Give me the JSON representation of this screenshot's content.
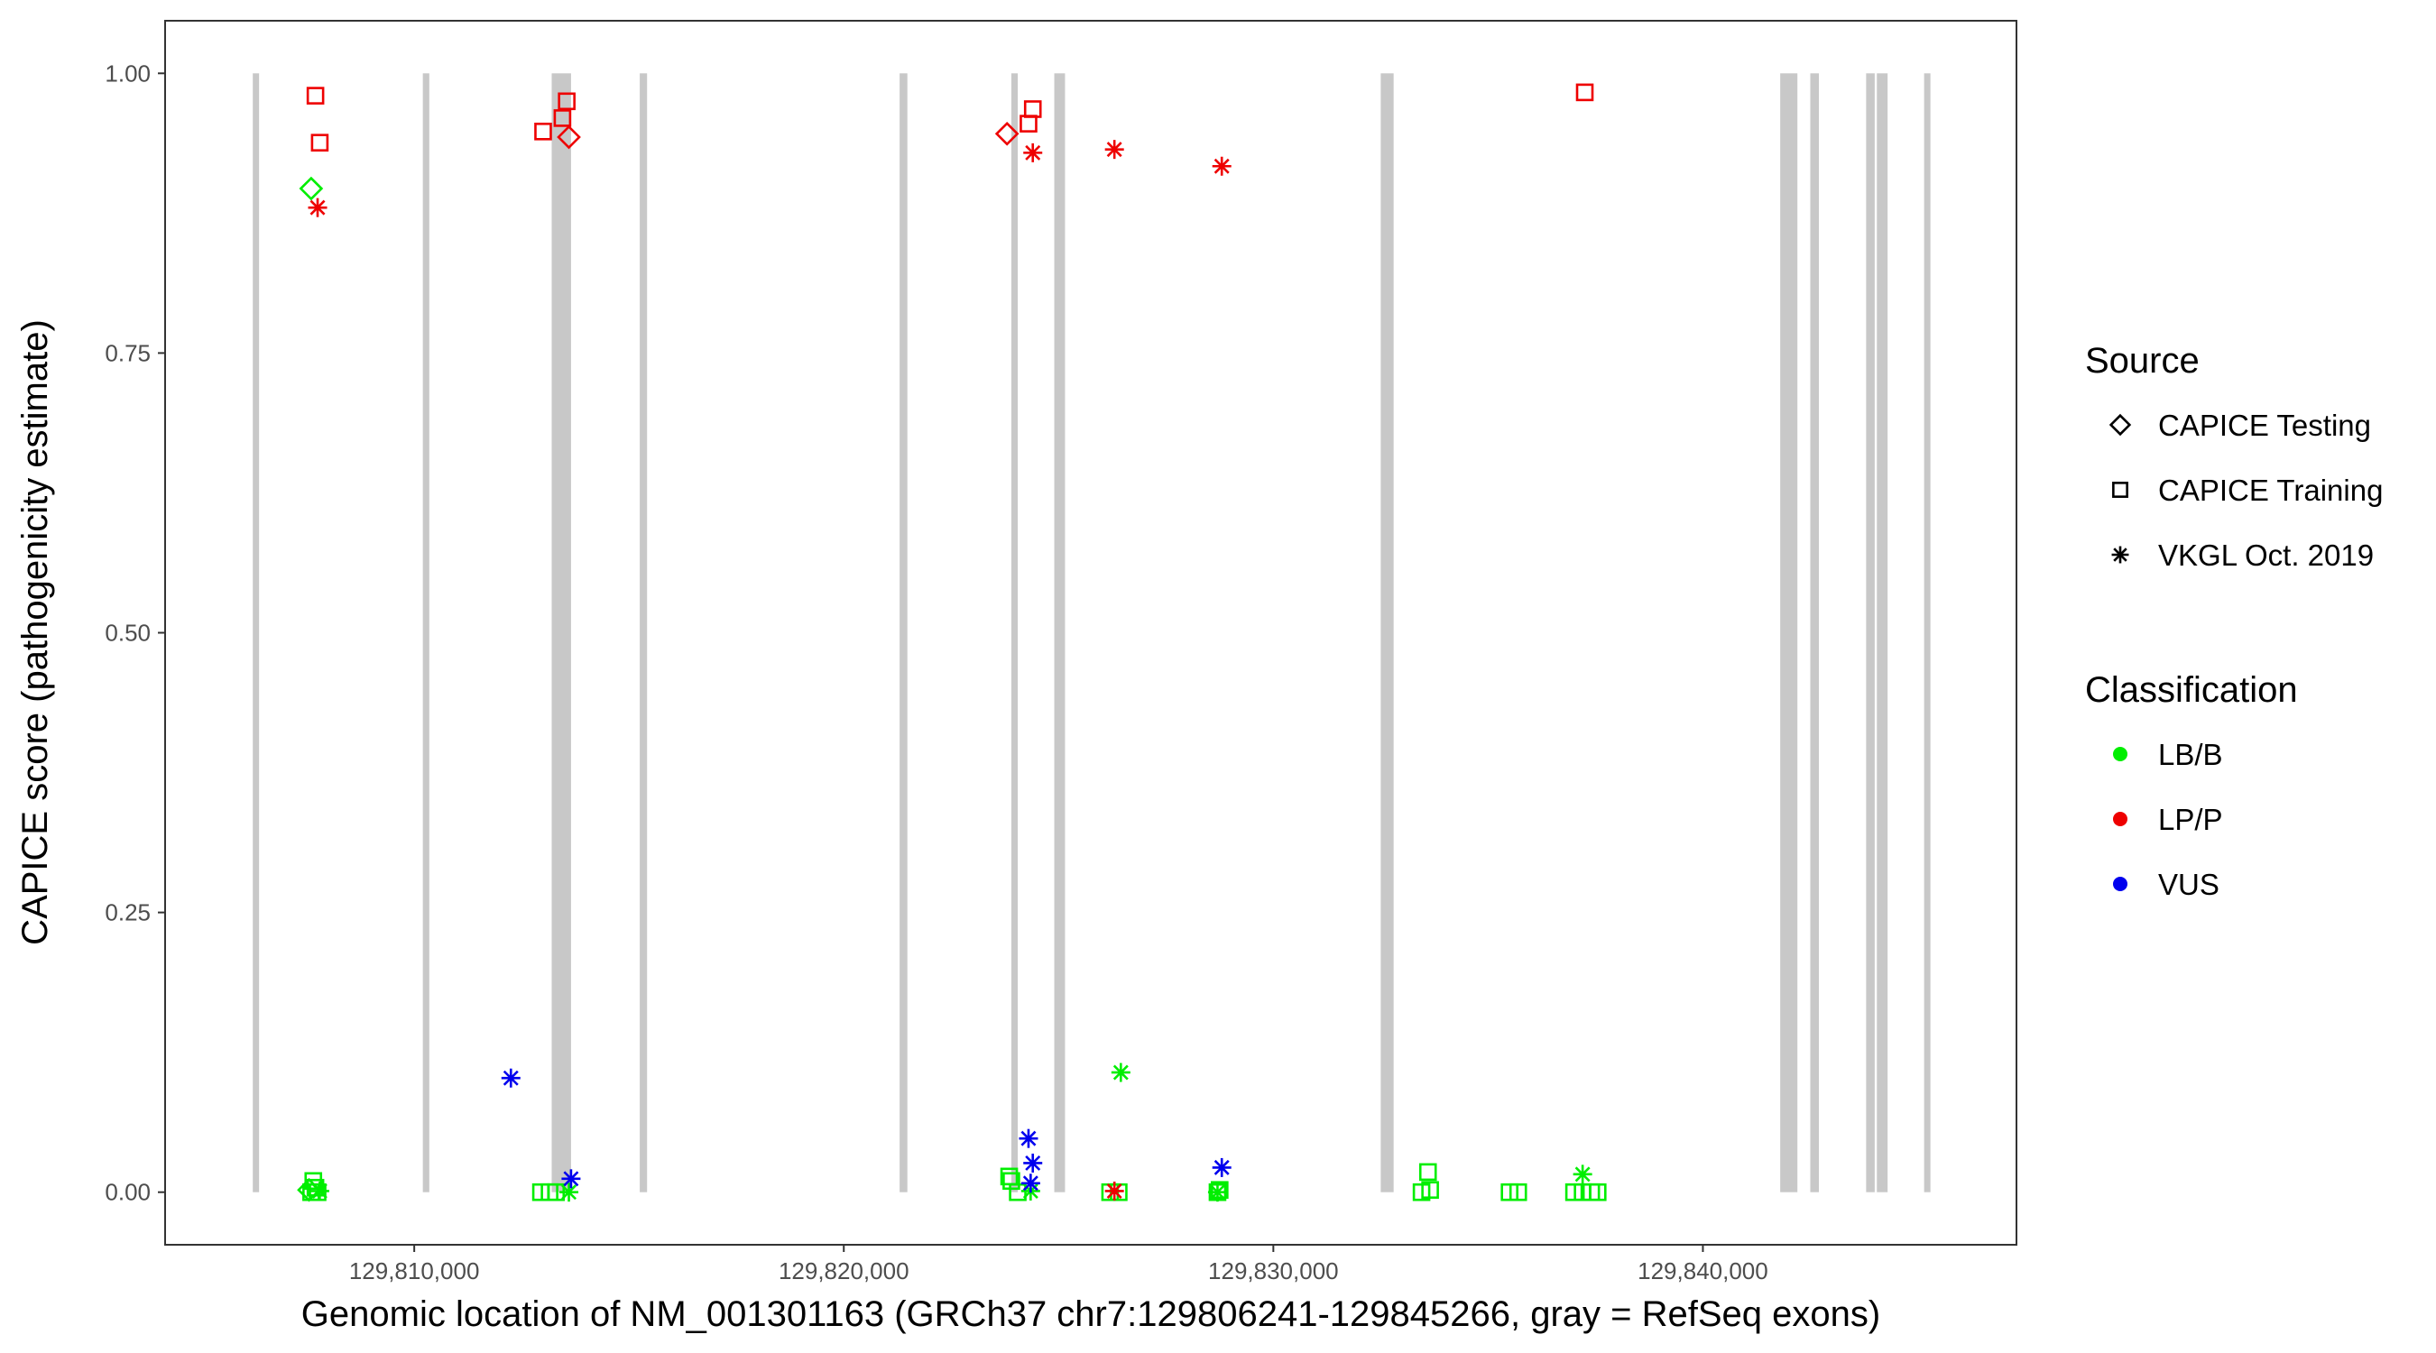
{
  "chart_data": {
    "type": "scatter",
    "title": "",
    "xlabel": "Genomic location of NM_001301163 (GRCh37 chr7:129806241-129845266, gray = RefSeq exons)",
    "ylabel": "CAPICE score (pathogenicity estimate)",
    "xlim": [
      129804200,
      129847300
    ],
    "ylim": [
      -0.047,
      1.047
    ],
    "x_ticks": [
      129810000,
      129820000,
      129830000,
      129840000
    ],
    "x_tick_labels": [
      "129,810,000",
      "129,820,000",
      "129,830,000",
      "129,840,000"
    ],
    "y_ticks": [
      0,
      0.25,
      0.5,
      0.75,
      1.0
    ],
    "y_tick_labels": [
      "0.00",
      "0.25",
      "0.50",
      "0.75",
      "1.00"
    ],
    "grid": false,
    "exons": [
      [
        129806241,
        129806380
      ],
      [
        129810200,
        129810350
      ],
      [
        129813200,
        129813650
      ],
      [
        129815250,
        129815420
      ],
      [
        129821300,
        129821480
      ],
      [
        129823900,
        129824050
      ],
      [
        129824900,
        129825150
      ],
      [
        129832500,
        129832800
      ],
      [
        129841800,
        129842200
      ],
      [
        129842500,
        129842700
      ],
      [
        129843800,
        129844000
      ],
      [
        129844050,
        129844300
      ],
      [
        129845150,
        129845266
      ]
    ],
    "exon_color": "#c8c8c8",
    "legend_source": {
      "title": "Source",
      "entries": [
        {
          "label": "CAPICE Testing",
          "shape": "diamond"
        },
        {
          "label": "CAPICE Training",
          "shape": "square"
        },
        {
          "label": "VKGL Oct. 2019",
          "shape": "asterisk"
        }
      ]
    },
    "legend_classification": {
      "title": "Classification",
      "entries": [
        {
          "label": "LB/B",
          "color": "#00ee00"
        },
        {
          "label": "LP/P",
          "color": "#ee0000"
        },
        {
          "label": "VUS",
          "color": "#0000ee"
        }
      ]
    },
    "legend_position": "right",
    "points": [
      {
        "x": 129807700,
        "y": 0.98,
        "source": "CAPICE Training",
        "class": "LP/P"
      },
      {
        "x": 129807800,
        "y": 0.938,
        "source": "CAPICE Training",
        "class": "LP/P"
      },
      {
        "x": 129807600,
        "y": 0.897,
        "source": "CAPICE Testing",
        "class": "LB/B"
      },
      {
        "x": 129807750,
        "y": 0.88,
        "source": "VKGL Oct. 2019",
        "class": "LP/P"
      },
      {
        "x": 129807650,
        "y": 0.01,
        "source": "CAPICE Training",
        "class": "LB/B"
      },
      {
        "x": 129807700,
        "y": 0.004,
        "source": "CAPICE Training",
        "class": "LB/B"
      },
      {
        "x": 129807600,
        "y": 0.0,
        "source": "CAPICE Training",
        "class": "LB/B"
      },
      {
        "x": 129807750,
        "y": 0.0,
        "source": "CAPICE Training",
        "class": "LB/B"
      },
      {
        "x": 129807800,
        "y": 0.001,
        "source": "VKGL Oct. 2019",
        "class": "LB/B"
      },
      {
        "x": 129807550,
        "y": 0.002,
        "source": "CAPICE Testing",
        "class": "LB/B"
      },
      {
        "x": 129812250,
        "y": 0.102,
        "source": "VKGL Oct. 2019",
        "class": "VUS"
      },
      {
        "x": 129813000,
        "y": 0.948,
        "source": "CAPICE Training",
        "class": "LP/P"
      },
      {
        "x": 129813450,
        "y": 0.96,
        "source": "CAPICE Training",
        "class": "LP/P"
      },
      {
        "x": 129813550,
        "y": 0.975,
        "source": "CAPICE Training",
        "class": "LP/P"
      },
      {
        "x": 129813600,
        "y": 0.943,
        "source": "CAPICE Testing",
        "class": "LP/P"
      },
      {
        "x": 129812950,
        "y": 0.0,
        "source": "CAPICE Training",
        "class": "LB/B"
      },
      {
        "x": 129813150,
        "y": 0.0,
        "source": "CAPICE Training",
        "class": "LB/B"
      },
      {
        "x": 129813300,
        "y": 0.0,
        "source": "CAPICE Training",
        "class": "LB/B"
      },
      {
        "x": 129813600,
        "y": 0.0,
        "source": "VKGL Oct. 2019",
        "class": "LB/B"
      },
      {
        "x": 129813650,
        "y": 0.012,
        "source": "VKGL Oct. 2019",
        "class": "VUS"
      },
      {
        "x": 129823800,
        "y": 0.946,
        "source": "CAPICE Testing",
        "class": "LP/P"
      },
      {
        "x": 129824300,
        "y": 0.955,
        "source": "CAPICE Training",
        "class": "LP/P"
      },
      {
        "x": 129824400,
        "y": 0.968,
        "source": "CAPICE Training",
        "class": "LP/P"
      },
      {
        "x": 129824400,
        "y": 0.929,
        "source": "VKGL Oct. 2019",
        "class": "LP/P"
      },
      {
        "x": 129823850,
        "y": 0.014,
        "source": "CAPICE Training",
        "class": "LB/B"
      },
      {
        "x": 129823900,
        "y": 0.01,
        "source": "CAPICE Training",
        "class": "LB/B"
      },
      {
        "x": 129824050,
        "y": 0.0,
        "source": "CAPICE Training",
        "class": "LB/B"
      },
      {
        "x": 129824350,
        "y": 0.001,
        "source": "VKGL Oct. 2019",
        "class": "LB/B"
      },
      {
        "x": 129824300,
        "y": 0.048,
        "source": "VKGL Oct. 2019",
        "class": "VUS"
      },
      {
        "x": 129824400,
        "y": 0.026,
        "source": "VKGL Oct. 2019",
        "class": "VUS"
      },
      {
        "x": 129824350,
        "y": 0.008,
        "source": "VKGL Oct. 2019",
        "class": "VUS"
      },
      {
        "x": 129826300,
        "y": 0.932,
        "source": "VKGL Oct. 2019",
        "class": "LP/P"
      },
      {
        "x": 129826450,
        "y": 0.107,
        "source": "VKGL Oct. 2019",
        "class": "LB/B"
      },
      {
        "x": 129826400,
        "y": 0.0,
        "source": "CAPICE Training",
        "class": "LB/B"
      },
      {
        "x": 129826200,
        "y": 0.0,
        "source": "CAPICE Training",
        "class": "LB/B"
      },
      {
        "x": 129826300,
        "y": 0.001,
        "source": "VKGL Oct. 2019",
        "class": "LP/P"
      },
      {
        "x": 129828800,
        "y": 0.917,
        "source": "VKGL Oct. 2019",
        "class": "LP/P"
      },
      {
        "x": 129828800,
        "y": 0.022,
        "source": "VKGL Oct. 2019",
        "class": "VUS"
      },
      {
        "x": 129828700,
        "y": 0.0,
        "source": "CAPICE Training",
        "class": "LB/B"
      },
      {
        "x": 129828750,
        "y": 0.002,
        "source": "CAPICE Training",
        "class": "LB/B"
      },
      {
        "x": 129828700,
        "y": 0.0,
        "source": "VKGL Oct. 2019",
        "class": "LB/B"
      },
      {
        "x": 129833600,
        "y": 0.018,
        "source": "CAPICE Training",
        "class": "LB/B"
      },
      {
        "x": 129833450,
        "y": 0.0,
        "source": "CAPICE Training",
        "class": "LB/B"
      },
      {
        "x": 129833650,
        "y": 0.002,
        "source": "CAPICE Training",
        "class": "LB/B"
      },
      {
        "x": 129835500,
        "y": 0.0,
        "source": "CAPICE Training",
        "class": "LB/B"
      },
      {
        "x": 129835700,
        "y": 0.0,
        "source": "CAPICE Training",
        "class": "LB/B"
      },
      {
        "x": 129837250,
        "y": 0.983,
        "source": "CAPICE Training",
        "class": "LP/P"
      },
      {
        "x": 129837200,
        "y": 0.016,
        "source": "VKGL Oct. 2019",
        "class": "LB/B"
      },
      {
        "x": 129837000,
        "y": 0.0,
        "source": "CAPICE Training",
        "class": "LB/B"
      },
      {
        "x": 129837200,
        "y": 0.0,
        "source": "CAPICE Training",
        "class": "LB/B"
      },
      {
        "x": 129837400,
        "y": 0.0,
        "source": "CAPICE Training",
        "class": "LB/B"
      },
      {
        "x": 129837550,
        "y": 0.0,
        "source": "CAPICE Training",
        "class": "LB/B"
      }
    ]
  }
}
